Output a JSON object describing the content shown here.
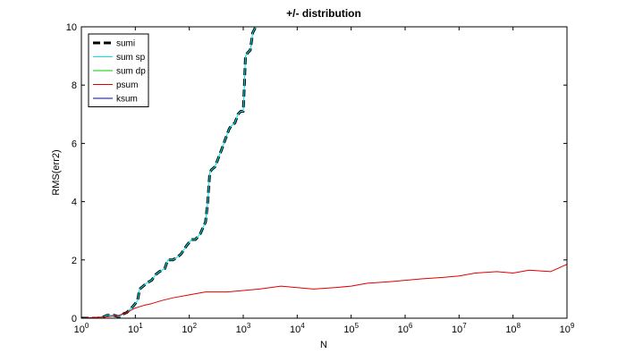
{
  "chart_data": {
    "type": "line",
    "title": "+/- distribution",
    "xlabel": "N",
    "ylabel": "RMS(err2)",
    "x_scale": "log10",
    "xlim": [
      1,
      1000000000
    ],
    "ylim": [
      0,
      10
    ],
    "x_ticks": [
      {
        "value": 1,
        "base": "10",
        "exp": "0"
      },
      {
        "value": 10,
        "base": "10",
        "exp": "1"
      },
      {
        "value": 100,
        "base": "10",
        "exp": "2"
      },
      {
        "value": 1000,
        "base": "10",
        "exp": "3"
      },
      {
        "value": 10000,
        "base": "10",
        "exp": "4"
      },
      {
        "value": 100000,
        "base": "10",
        "exp": "5"
      },
      {
        "value": 1000000,
        "base": "10",
        "exp": "6"
      },
      {
        "value": 10000000,
        "base": "10",
        "exp": "7"
      },
      {
        "value": 100000000,
        "base": "10",
        "exp": "8"
      },
      {
        "value": 1000000000,
        "base": "10",
        "exp": "9"
      }
    ],
    "y_ticks": [
      {
        "value": 0,
        "label": "0"
      },
      {
        "value": 2,
        "label": "2"
      },
      {
        "value": 4,
        "label": "4"
      },
      {
        "value": 6,
        "label": "6"
      },
      {
        "value": 8,
        "label": "8"
      },
      {
        "value": 10,
        "label": "10"
      }
    ],
    "grid": false,
    "legend_position": "top-left",
    "series": [
      {
        "name": "sumi",
        "color": "#000000",
        "style": "dashed-thick",
        "x": [
          1,
          2,
          2.6,
          3,
          4,
          5,
          6,
          7,
          9,
          11,
          12,
          14,
          16,
          20,
          24,
          28,
          35,
          40,
          50,
          60,
          70,
          90,
          110,
          130,
          160,
          200,
          220,
          240,
          260,
          300,
          400,
          500,
          550,
          600,
          700,
          800,
          900,
          1000,
          1050,
          1100,
          1200,
          1350,
          1500,
          1600,
          1700,
          1800
        ],
        "y": [
          0,
          0,
          0.05,
          0.1,
          0.1,
          0.05,
          0.15,
          0.2,
          0.4,
          0.6,
          1.0,
          1.1,
          1.2,
          1.3,
          1.5,
          1.6,
          1.7,
          2.0,
          2.0,
          2.1,
          2.2,
          2.5,
          2.7,
          2.7,
          2.9,
          3.3,
          4.0,
          5.0,
          5.1,
          5.2,
          5.8,
          6.3,
          6.5,
          6.6,
          6.7,
          7.0,
          7.1,
          7.1,
          8.0,
          9.0,
          9.1,
          9.2,
          9.8,
          9.9,
          10.0,
          10.0
        ]
      },
      {
        "name": "sum sp",
        "color": "#00e5ee",
        "style": "solid",
        "x": [
          1,
          2,
          2.6,
          3,
          4,
          5,
          6,
          7,
          9,
          11,
          12,
          14,
          16,
          20,
          24,
          28,
          35,
          40,
          50,
          60,
          70,
          90,
          110,
          130,
          160,
          200,
          220,
          240,
          260,
          300,
          400,
          500,
          550,
          600,
          700,
          800,
          900,
          1000,
          1050,
          1100,
          1200,
          1350,
          1500,
          1600,
          1700,
          1800
        ],
        "y": [
          0,
          0,
          0.05,
          0.1,
          0.1,
          0.05,
          0.15,
          0.2,
          0.4,
          0.6,
          1.0,
          1.1,
          1.2,
          1.3,
          1.5,
          1.6,
          1.7,
          2.0,
          2.0,
          2.1,
          2.2,
          2.5,
          2.7,
          2.7,
          2.9,
          3.3,
          4.0,
          5.0,
          5.1,
          5.2,
          5.8,
          6.3,
          6.5,
          6.6,
          6.7,
          7.0,
          7.1,
          7.1,
          8.0,
          9.0,
          9.1,
          9.2,
          9.8,
          9.9,
          10.0,
          10.0
        ]
      },
      {
        "name": "sum dp",
        "color": "#00cc00",
        "style": "solid",
        "x": [
          1,
          1000000000
        ],
        "y": [
          0,
          0
        ]
      },
      {
        "name": "psum",
        "color": "#e00000",
        "style": "solid",
        "x": [
          1,
          3,
          5,
          7,
          10,
          15,
          20,
          30,
          50,
          100,
          200,
          500,
          1000,
          2000,
          5000,
          10000,
          20000,
          50000,
          100000,
          200000,
          500000,
          1000000,
          2000000,
          5000000,
          10000000,
          20000000,
          50000000,
          100000000,
          200000000,
          500000000,
          1000000000
        ],
        "y": [
          0,
          0.05,
          0.1,
          0.2,
          0.35,
          0.45,
          0.5,
          0.6,
          0.7,
          0.8,
          0.9,
          0.9,
          0.95,
          1.0,
          1.1,
          1.05,
          1.0,
          1.05,
          1.1,
          1.2,
          1.25,
          1.3,
          1.35,
          1.4,
          1.45,
          1.55,
          1.6,
          1.55,
          1.65,
          1.6,
          1.85
        ]
      },
      {
        "name": "ksum",
        "color": "#0000cc",
        "style": "solid",
        "x": [
          1,
          1000000000
        ],
        "y": [
          0,
          0
        ]
      }
    ]
  }
}
